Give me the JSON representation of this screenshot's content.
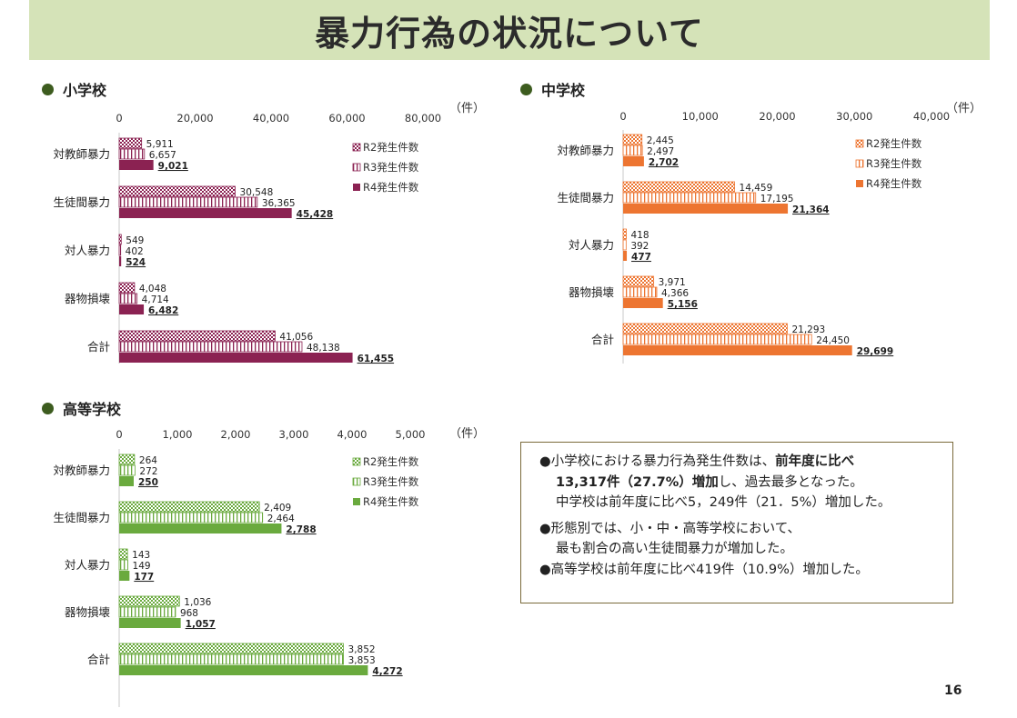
{
  "page_title": "暴力行為の状況について",
  "page_number": "16",
  "chart_data": [
    {
      "type": "bar",
      "title": "小学校",
      "unit": "（件）",
      "categories": [
        "対教師暴力",
        "生徒間暴力",
        "対人暴力",
        "器物損壊",
        "合計"
      ],
      "xlim": [
        0,
        80000
      ],
      "ticks": [
        "0",
        "20,000",
        "40,000",
        "60,000",
        "80,000"
      ],
      "tick_values": [
        0,
        20000,
        40000,
        60000,
        80000
      ],
      "color": "#8b2252",
      "series": [
        {
          "name": "R2発生件数",
          "values": [
            5911,
            30548,
            549,
            4048,
            41056
          ],
          "labels": [
            "5,911",
            "30,548",
            "549",
            "4,048",
            "41,056"
          ]
        },
        {
          "name": "R3発生件数",
          "values": [
            6657,
            36365,
            402,
            4714,
            48138
          ],
          "labels": [
            "6,657",
            "36,365",
            "402",
            "4,714",
            "48,138"
          ]
        },
        {
          "name": "R4発生件数",
          "values": [
            9021,
            45428,
            524,
            6482,
            61455
          ],
          "labels": [
            "9,021",
            "45,428",
            "524",
            "6,482",
            "61,455"
          ]
        }
      ]
    },
    {
      "type": "bar",
      "title": "中学校",
      "unit": "（件）",
      "categories": [
        "対教師暴力",
        "生徒間暴力",
        "対人暴力",
        "器物損壊",
        "合計"
      ],
      "xlim": [
        0,
        40000
      ],
      "ticks": [
        "0",
        "10,000",
        "20,000",
        "30,000",
        "40,000"
      ],
      "tick_values": [
        0,
        10000,
        20000,
        30000,
        40000
      ],
      "color": "#ed7531",
      "series": [
        {
          "name": "R2発生件数",
          "values": [
            2445,
            14459,
            418,
            3971,
            21293
          ],
          "labels": [
            "2,445",
            "14,459",
            "418",
            "3,971",
            "21,293"
          ]
        },
        {
          "name": "R3発生件数",
          "values": [
            2497,
            17195,
            392,
            4366,
            24450
          ],
          "labels": [
            "2,497",
            "17,195",
            "392",
            "4,366",
            "24,450"
          ]
        },
        {
          "name": "R4発生件数",
          "values": [
            2702,
            21364,
            477,
            5156,
            29699
          ],
          "labels": [
            "2,702",
            "21,364",
            "477",
            "5,156",
            "29,699"
          ]
        }
      ]
    },
    {
      "type": "bar",
      "title": "高等学校",
      "unit": "（件）",
      "categories": [
        "対教師暴力",
        "生徒間暴力",
        "対人暴力",
        "器物損壊",
        "合計"
      ],
      "xlim": [
        0,
        5000
      ],
      "ticks": [
        "0",
        "1,000",
        "2,000",
        "3,000",
        "4,000",
        "5,000"
      ],
      "tick_values": [
        0,
        1000,
        2000,
        3000,
        4000,
        5000
      ],
      "color": "#6aaa3e",
      "series": [
        {
          "name": "R2発生件数",
          "values": [
            264,
            2409,
            143,
            1036,
            3852
          ],
          "labels": [
            "264",
            "2,409",
            "143",
            "1,036",
            "3,852"
          ]
        },
        {
          "name": "R3発生件数",
          "values": [
            272,
            2464,
            149,
            968,
            3853
          ],
          "labels": [
            "272",
            "2,464",
            "149",
            "968",
            "3,853"
          ]
        },
        {
          "name": "R4発生件数",
          "values": [
            250,
            2788,
            177,
            1057,
            4272
          ],
          "labels": [
            "250",
            "2,788",
            "177",
            "1,057",
            "4,272"
          ]
        }
      ]
    }
  ],
  "notes": {
    "line1_a": "●小学校における暴力行為発生件数は、",
    "line1_b": "前年度に比べ",
    "line2_a": "13,317件（27.7%）増加",
    "line2_b": "し、過去最多となった。",
    "line3": "中学校は前年度に比べ5，249件（21．5%）増加した。",
    "line4": "●形態別では、小・中・高等学校において、",
    "line5": "最も割合の高い生徒間暴力が増加した。",
    "line6": "●高等学校は前年度に比べ419件（10.9%）増加した。"
  }
}
